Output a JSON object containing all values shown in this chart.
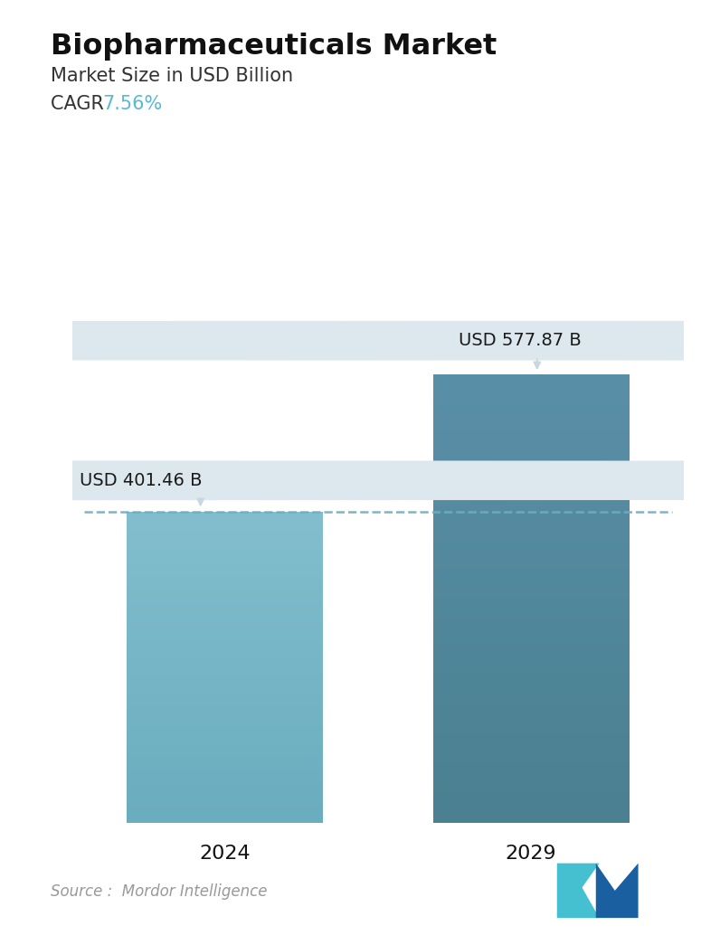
{
  "title": "Biopharmaceuticals Market",
  "subtitle": "Market Size in USD Billion",
  "cagr_label": "CAGR ",
  "cagr_value": "7.56%",
  "cagr_color": "#5bb8d4",
  "categories": [
    "2024",
    "2029"
  ],
  "values": [
    401.46,
    577.87
  ],
  "labels": [
    "USD 401.46 B",
    "USD 577.87 B"
  ],
  "bar_color_top": [
    "#82bece",
    "#5a8fa8"
  ],
  "bar_color_bottom": [
    "#6aadbe",
    "#4a8090"
  ],
  "dashed_line_color": "#6aaec4",
  "dashed_line_y": 401.46,
  "source_text": "Source :  Mordor Intelligence",
  "bg_color": "#ffffff",
  "ylim": [
    0,
    700
  ],
  "title_fontsize": 23,
  "subtitle_fontsize": 15,
  "cagr_fontsize": 15,
  "label_fontsize": 14,
  "tick_fontsize": 16,
  "source_fontsize": 12
}
